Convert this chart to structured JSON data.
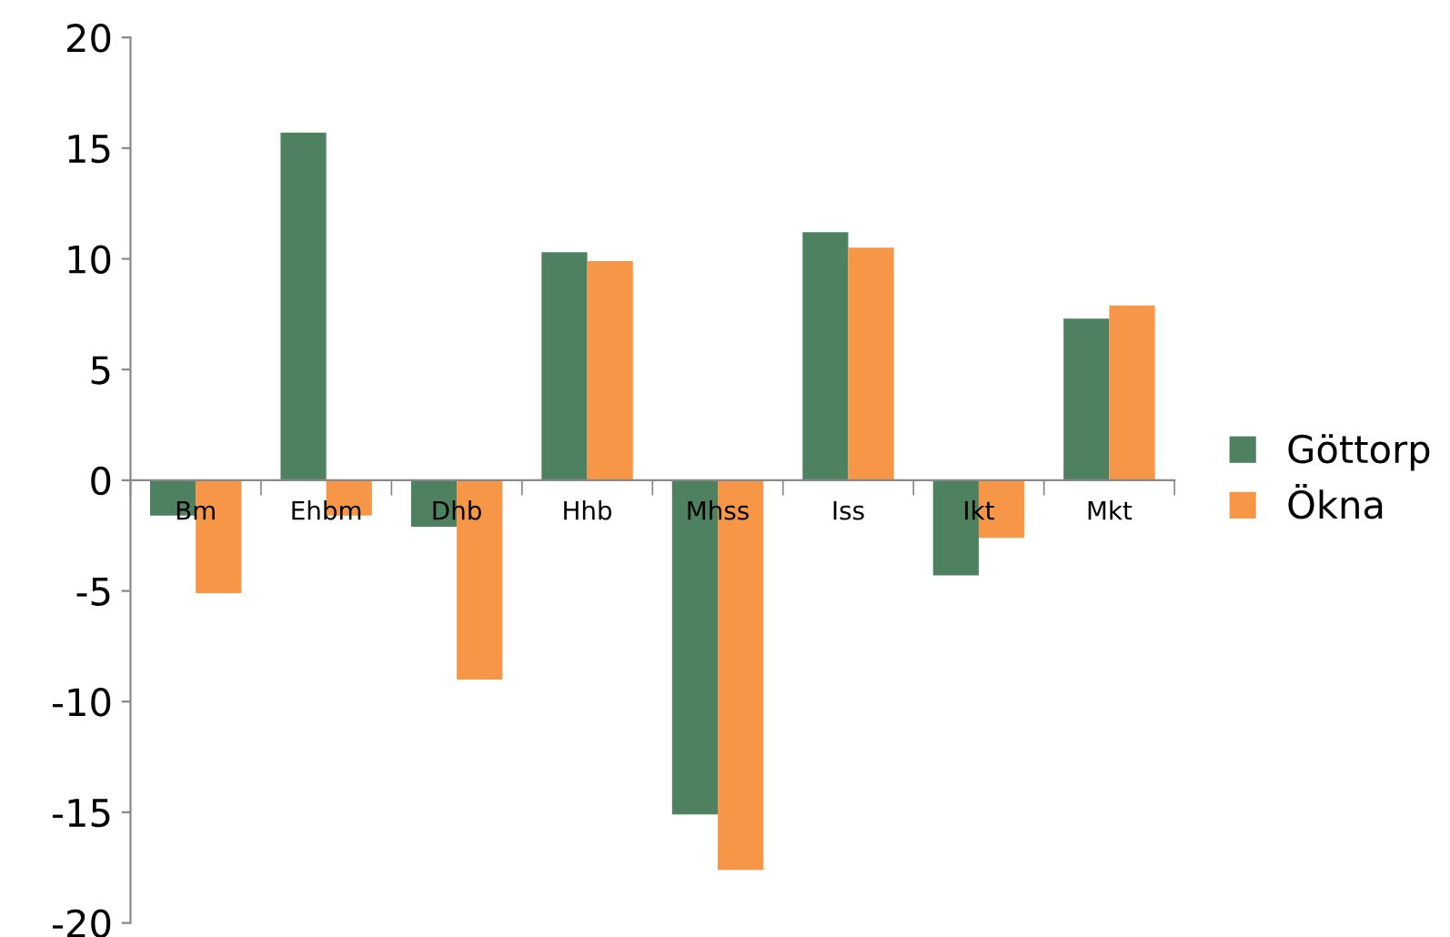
{
  "chart_data": {
    "type": "bar",
    "categories": [
      "Bm",
      "Ehbm",
      "Dhb",
      "Hhb",
      "Mhss",
      "Iss",
      "Ikt",
      "Mkt"
    ],
    "series": [
      {
        "name": "Göttorp",
        "color": "#4e8160",
        "values": [
          -1.6,
          15.7,
          -2.1,
          10.3,
          -15.1,
          11.2,
          -4.3,
          7.3
        ]
      },
      {
        "name": "Ökna",
        "color": "#f79646",
        "values": [
          -5.1,
          -1.6,
          -9.0,
          9.9,
          -17.6,
          10.5,
          -2.6,
          7.9
        ]
      }
    ],
    "ylim": [
      -20,
      20
    ],
    "yticks": [
      -20,
      -15,
      -10,
      -5,
      0,
      5,
      10,
      15,
      20
    ],
    "grid": false,
    "legend": "right"
  }
}
